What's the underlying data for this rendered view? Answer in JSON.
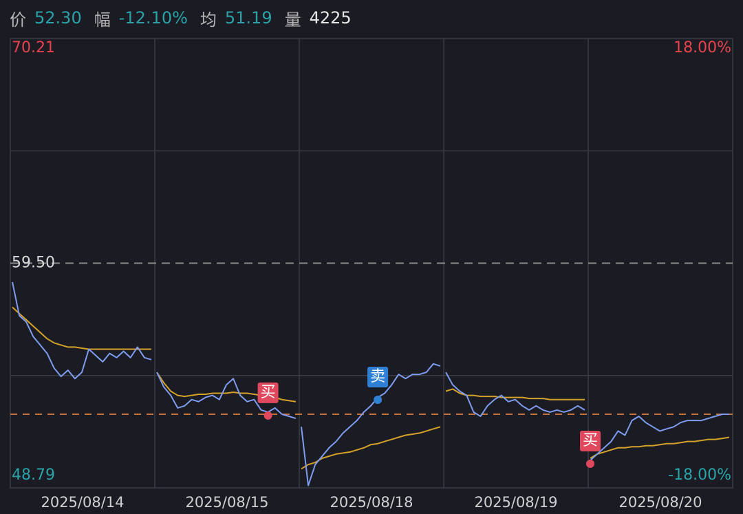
{
  "header": {
    "items": [
      {
        "label": "价",
        "value": "52.30",
        "color": "#2aa3a8"
      },
      {
        "label": "幅",
        "value": "-12.10%",
        "color": "#2aa3a8"
      },
      {
        "label": "均",
        "value": "51.19",
        "color": "#2aa3a8"
      },
      {
        "label": "量",
        "value": "4225",
        "color": "#e6e6e6"
      }
    ]
  },
  "chart_data": {
    "type": "line",
    "ylim": [
      48.79,
      70.21
    ],
    "yticks": [
      {
        "value": 70.21,
        "label": "70.21",
        "color": "#e8424e"
      },
      {
        "value": 59.5,
        "label": "59.50",
        "color": "#d8d8d8",
        "dashed": true
      },
      {
        "value": 48.79,
        "label": "48.79",
        "color": "#2aa3a8"
      }
    ],
    "y2lim": [
      -18,
      18
    ],
    "y2ticks": [
      {
        "value": 18,
        "label": "18.00%",
        "color": "#e8424e"
      },
      {
        "value": -18,
        "label": "-18.00%",
        "color": "#2aa3a8"
      }
    ],
    "last_price": 52.3,
    "price_color": "#7e9cf0",
    "avg_color": "#d4a12a",
    "last_color": "#c8743a",
    "days": [
      {
        "label": "2025/08/14",
        "price": [
          58.6,
          57.0,
          56.7,
          56.0,
          55.6,
          55.2,
          54.5,
          54.1,
          54.4,
          54.0,
          54.3,
          55.4,
          55.1,
          54.8,
          55.2,
          55.0,
          55.3,
          55.0,
          55.5,
          55.0,
          54.9
        ],
        "avg": [
          57.4,
          57.1,
          56.8,
          56.5,
          56.2,
          55.9,
          55.7,
          55.6,
          55.5,
          55.5,
          55.45,
          55.4,
          55.4,
          55.4,
          55.4,
          55.4,
          55.4,
          55.4,
          55.4,
          55.4,
          55.4
        ]
      },
      {
        "label": "2025/08/15",
        "price": [
          54.3,
          53.6,
          53.2,
          52.6,
          52.7,
          53.0,
          52.9,
          53.1,
          53.2,
          53.0,
          53.7,
          54.0,
          53.2,
          52.9,
          53.0,
          52.5,
          52.4,
          52.6,
          52.3,
          52.2,
          52.1
        ],
        "avg": [
          54.3,
          53.8,
          53.4,
          53.2,
          53.15,
          53.2,
          53.25,
          53.25,
          53.3,
          53.3,
          53.3,
          53.35,
          53.3,
          53.3,
          53.25,
          53.2,
          53.15,
          53.1,
          53.0,
          52.95,
          52.9
        ]
      },
      {
        "label": "2025/08/18",
        "price": [
          51.7,
          48.9,
          49.9,
          50.3,
          50.7,
          51.0,
          51.4,
          51.7,
          52.0,
          52.4,
          52.7,
          53.1,
          53.3,
          53.7,
          54.2,
          54.0,
          54.2,
          54.2,
          54.3,
          54.7,
          54.6
        ],
        "avg": [
          49.7,
          49.9,
          50.0,
          50.2,
          50.3,
          50.4,
          50.45,
          50.5,
          50.6,
          50.7,
          50.85,
          50.9,
          51.0,
          51.1,
          51.2,
          51.3,
          51.35,
          51.4,
          51.5,
          51.6,
          51.7
        ]
      },
      {
        "label": "2025/08/19",
        "price": [
          54.3,
          53.7,
          53.4,
          53.2,
          52.4,
          52.2,
          52.7,
          53.0,
          53.2,
          52.9,
          53.0,
          52.7,
          52.5,
          52.7,
          52.5,
          52.4,
          52.5,
          52.4,
          52.5,
          52.7,
          52.5
        ],
        "avg": [
          53.4,
          53.5,
          53.3,
          53.2,
          53.2,
          53.15,
          53.15,
          53.15,
          53.1,
          53.1,
          53.1,
          53.1,
          53.05,
          53.05,
          53.05,
          53.0,
          53.0,
          53.0,
          53.0,
          53.0,
          53.0
        ]
      },
      {
        "label": "2025/08/20",
        "price": [
          50.1,
          50.4,
          50.7,
          51.0,
          51.5,
          51.3,
          52.0,
          52.2,
          51.9,
          51.7,
          51.5,
          51.6,
          51.7,
          51.9,
          52.0,
          52.0,
          52.0,
          52.1,
          52.2,
          52.3,
          52.3
        ],
        "avg": [
          50.2,
          50.4,
          50.5,
          50.6,
          50.7,
          50.7,
          50.75,
          50.75,
          50.8,
          50.8,
          50.85,
          50.9,
          50.9,
          50.95,
          51.0,
          51.0,
          51.05,
          51.1,
          51.1,
          51.15,
          51.2
        ]
      }
    ],
    "markers": [
      {
        "label": "买",
        "day": 1,
        "index": 16,
        "price": 52.24,
        "color": "#e0485e"
      },
      {
        "label": "卖",
        "day": 2,
        "index": 11,
        "price": 52.99,
        "color": "#2f80d4"
      },
      {
        "label": "买",
        "day": 4,
        "index": 0,
        "price": 49.94,
        "color": "#e0485e"
      }
    ]
  }
}
